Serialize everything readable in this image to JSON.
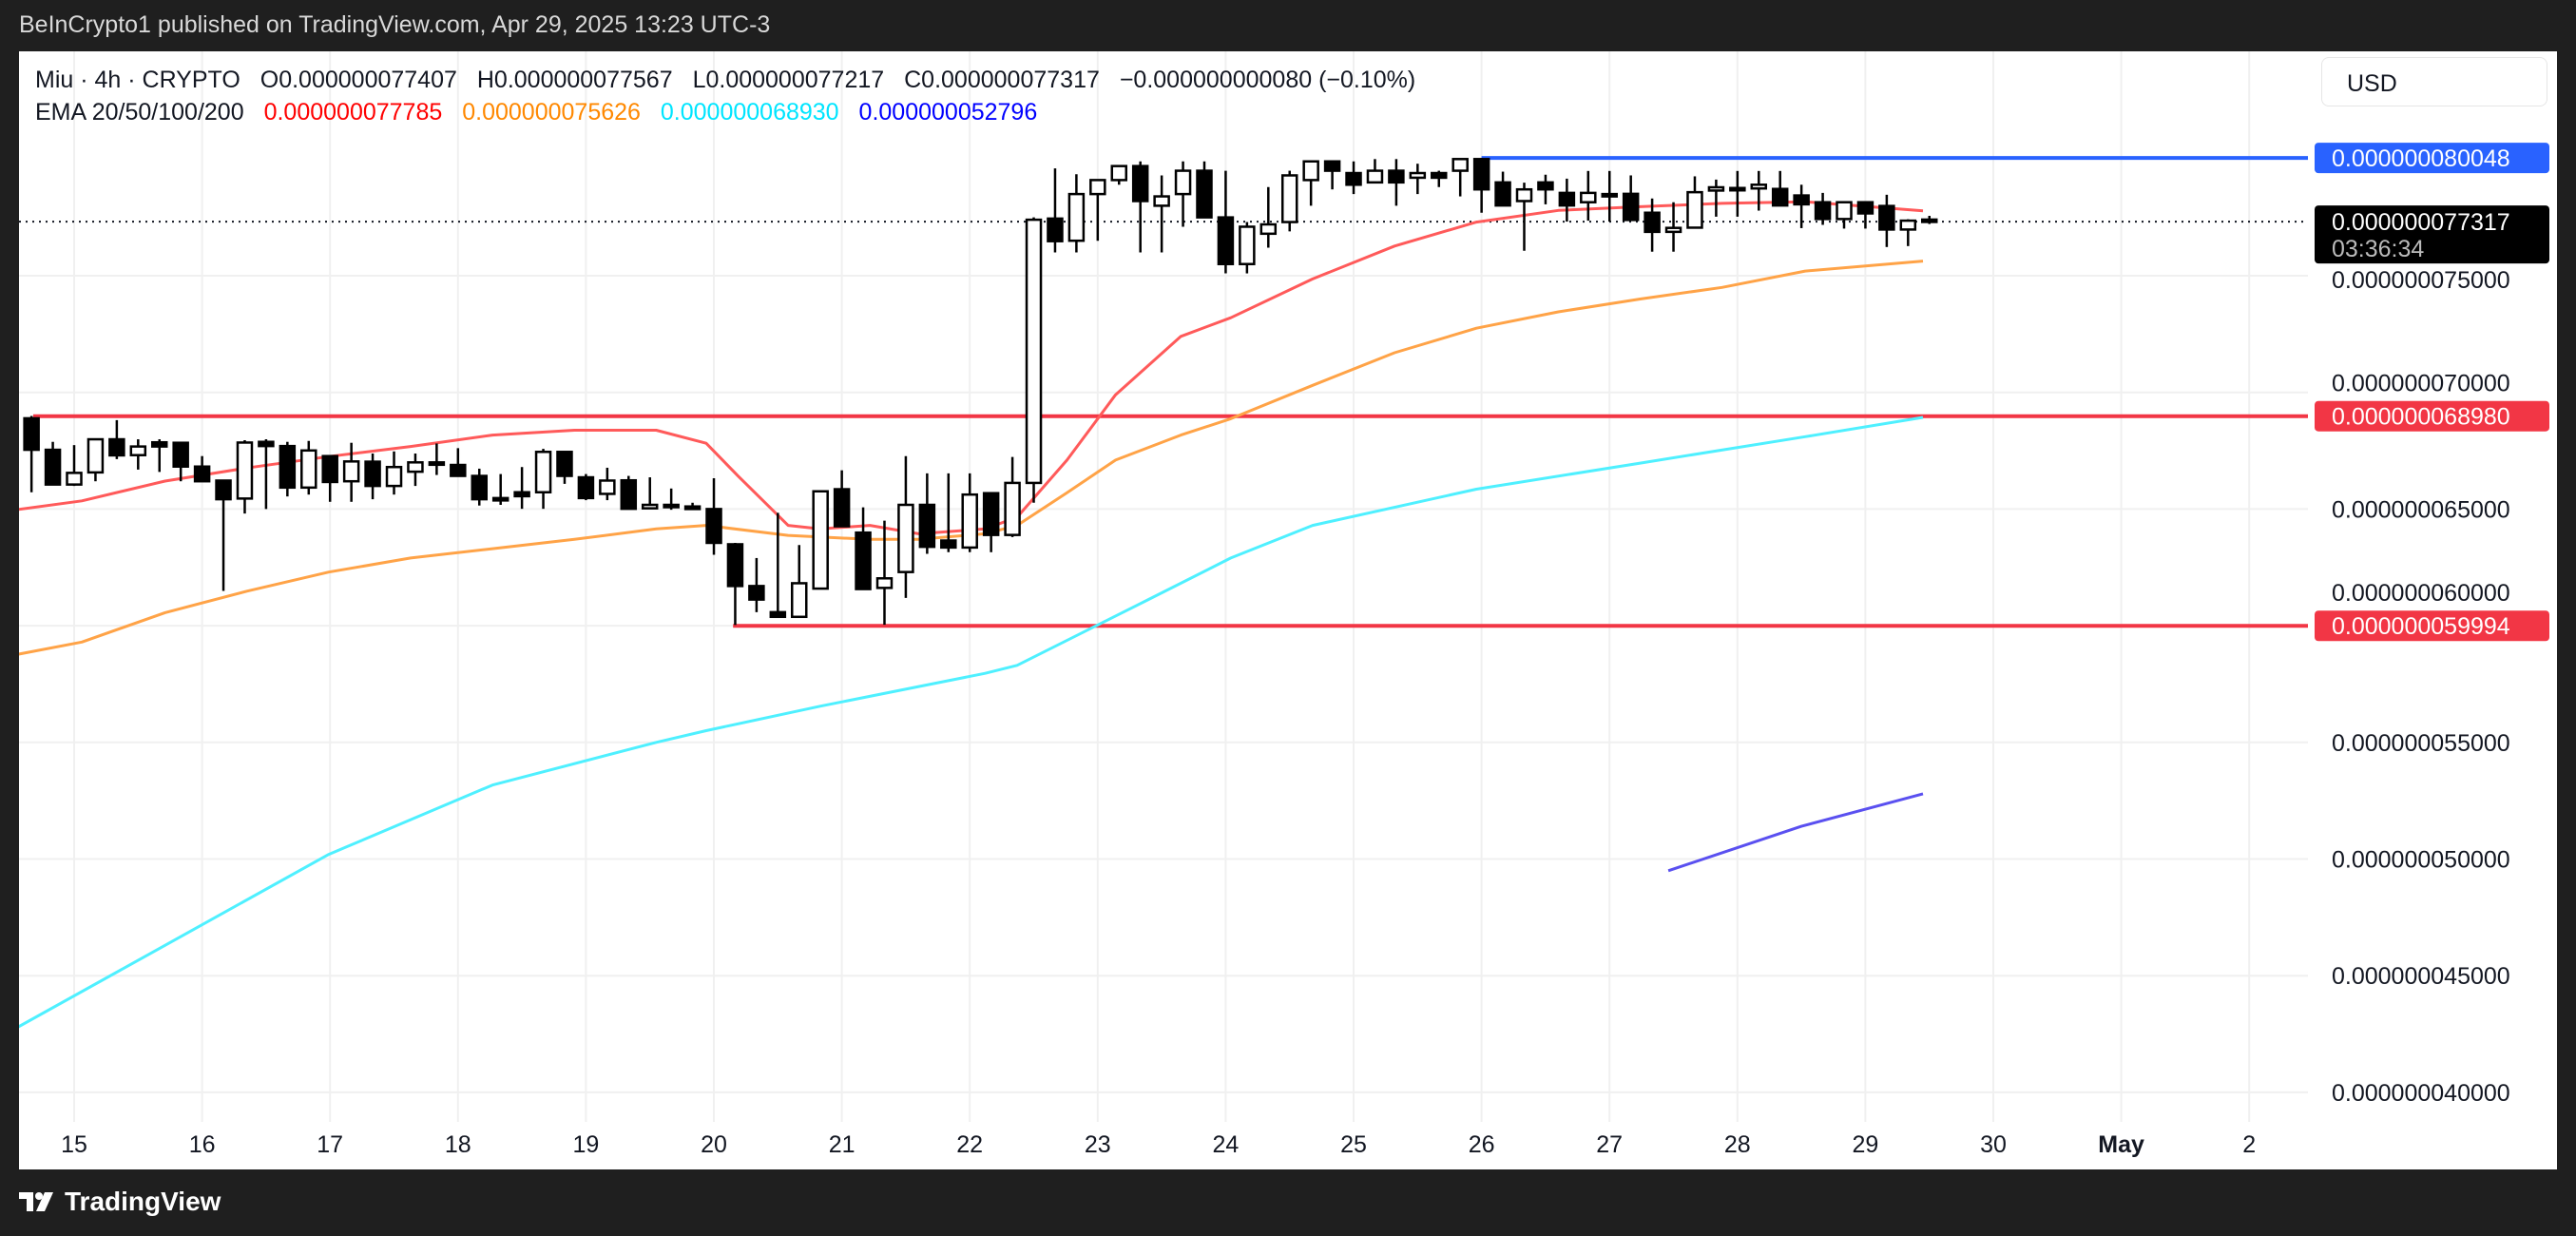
{
  "header": {
    "published": "BeInCrypto1 published on TradingView.com, Apr 29, 2025 13:23 UTC-3",
    "symbol": "Miu · 4h · CRYPTO",
    "open": "O0.000000077407",
    "high": "H0.000000077567",
    "low": "L0.000000077217",
    "close": "C0.000000077317",
    "change": "−0.000000000080 (−0.10%)",
    "ema_label": "EMA 20/50/100/200",
    "ema_values": [
      "0.000000077785",
      "0.000000075626",
      "0.000000068930",
      "0.000000052796"
    ],
    "ema_colors": [
      "#ff0000",
      "#ff8800",
      "#00e5ff",
      "#0000ff"
    ]
  },
  "currency_button": "USD",
  "footer": {
    "logo_text": "TradingView"
  },
  "chart_data": {
    "type": "candlestick",
    "title": "Miu · 4h · CRYPTO",
    "value_scale": 1e-09,
    "x_unit": "day of April 2025",
    "candle_interval_days": 0.16667,
    "first_candle_day": 14.6667,
    "ylim": [
      38.5,
      81.5
    ],
    "xlim": [
      14.45,
      33.0
    ],
    "grid": true,
    "y_ticks": [
      {
        "value": 75,
        "label": "0.000000075000"
      },
      {
        "value": 70,
        "label": "0.000000070000"
      },
      {
        "value": 65,
        "label": "0.000000065000"
      },
      {
        "value": 60,
        "label": "0.000000060000"
      },
      {
        "value": 55,
        "label": "0.000000055000"
      },
      {
        "value": 50,
        "label": "0.000000050000"
      },
      {
        "value": 45,
        "label": "0.000000045000"
      },
      {
        "value": 40,
        "label": "0.000000040000"
      }
    ],
    "x_ticks": [
      {
        "day": 15,
        "label": "15"
      },
      {
        "day": 16,
        "label": "16"
      },
      {
        "day": 17,
        "label": "17"
      },
      {
        "day": 18,
        "label": "18"
      },
      {
        "day": 19,
        "label": "19"
      },
      {
        "day": 20,
        "label": "20"
      },
      {
        "day": 21,
        "label": "21"
      },
      {
        "day": 22,
        "label": "22"
      },
      {
        "day": 23,
        "label": "23"
      },
      {
        "day": 24,
        "label": "24"
      },
      {
        "day": 25,
        "label": "25"
      },
      {
        "day": 26,
        "label": "26"
      },
      {
        "day": 27,
        "label": "27"
      },
      {
        "day": 28,
        "label": "28"
      },
      {
        "day": 29,
        "label": "29"
      },
      {
        "day": 30,
        "label": "30"
      },
      {
        "day": 31,
        "label": "May"
      },
      {
        "day": 32,
        "label": "2"
      }
    ],
    "candles_ohlc": [
      [
        68.89,
        68.99,
        65.72,
        67.54
      ],
      [
        67.54,
        67.88,
        66.05,
        66.05
      ],
      [
        66.05,
        67.74,
        65.99,
        66.55
      ],
      [
        66.57,
        67.99,
        66.19,
        67.99
      ],
      [
        67.99,
        68.81,
        67.14,
        67.3
      ],
      [
        67.31,
        67.99,
        66.69,
        67.68
      ],
      [
        67.86,
        67.99,
        66.59,
        67.68
      ],
      [
        67.84,
        67.84,
        66.19,
        66.82
      ],
      [
        66.82,
        67.27,
        66.19,
        66.19
      ],
      [
        66.22,
        66.22,
        61.49,
        65.42
      ],
      [
        65.45,
        67.95,
        64.81,
        67.85
      ],
      [
        67.88,
        67.99,
        65.0,
        67.7
      ],
      [
        67.7,
        67.88,
        65.54,
        65.92
      ],
      [
        65.92,
        67.92,
        65.62,
        67.51
      ],
      [
        67.27,
        67.27,
        65.31,
        66.16
      ],
      [
        66.19,
        67.84,
        65.31,
        67.04
      ],
      [
        67.03,
        67.38,
        65.42,
        65.99
      ],
      [
        65.99,
        67.47,
        65.62,
        66.8
      ],
      [
        66.6,
        67.38,
        65.99,
        67.0
      ],
      [
        67.0,
        67.81,
        66.46,
        67.0
      ],
      [
        66.89,
        67.61,
        66.42,
        66.42
      ],
      [
        66.42,
        66.73,
        65.15,
        65.42
      ],
      [
        65.47,
        66.5,
        65.18,
        65.47
      ],
      [
        65.72,
        66.8,
        65.01,
        65.55
      ],
      [
        65.72,
        67.58,
        65.01,
        67.45
      ],
      [
        67.45,
        67.45,
        66.08,
        66.42
      ],
      [
        66.36,
        66.5,
        65.38,
        65.47
      ],
      [
        65.65,
        66.77,
        65.38,
        66.22
      ],
      [
        66.23,
        66.42,
        65.01,
        65.01
      ],
      [
        65.03,
        66.36,
        65.01,
        65.18
      ],
      [
        65.18,
        65.88,
        64.97,
        65.18
      ],
      [
        65.11,
        65.27,
        65.0,
        65.0
      ],
      [
        65.0,
        66.32,
        63.04,
        63.55
      ],
      [
        63.49,
        63.55,
        60.03,
        61.7
      ],
      [
        61.7,
        62.9,
        60.58,
        61.12
      ],
      [
        60.58,
        64.84,
        60.38,
        60.38
      ],
      [
        60.38,
        63.46,
        60.38,
        61.82
      ],
      [
        61.59,
        65.78,
        61.59,
        65.76
      ],
      [
        65.85,
        66.66,
        64.26,
        64.26
      ],
      [
        63.99,
        65.07,
        61.53,
        61.57
      ],
      [
        61.62,
        64.5,
        60.04,
        62.03
      ],
      [
        62.3,
        67.27,
        61.19,
        65.18
      ],
      [
        65.18,
        66.53,
        63.08,
        63.38
      ],
      [
        63.65,
        66.53,
        63.15,
        63.35
      ],
      [
        63.35,
        66.53,
        63.15,
        65.62
      ],
      [
        65.68,
        65.68,
        63.15,
        63.89
      ],
      [
        63.89,
        67.23,
        63.8,
        66.12
      ],
      [
        66.12,
        77.5,
        65.27,
        77.4
      ],
      [
        77.45,
        79.6,
        76.0,
        76.48
      ],
      [
        76.5,
        79.35,
        76.0,
        78.5
      ],
      [
        78.5,
        79.1,
        76.5,
        79.1
      ],
      [
        79.1,
        79.7,
        78.9,
        79.7
      ],
      [
        79.7,
        79.9,
        76.0,
        78.2
      ],
      [
        78.0,
        79.3,
        76.0,
        78.4
      ],
      [
        78.5,
        79.9,
        77.1,
        79.5
      ],
      [
        79.5,
        79.9,
        77.5,
        77.5
      ],
      [
        77.5,
        79.5,
        75.1,
        75.5
      ],
      [
        75.5,
        77.3,
        75.1,
        77.1
      ],
      [
        76.8,
        78.8,
        76.2,
        77.2
      ],
      [
        77.3,
        79.5,
        76.9,
        79.3
      ],
      [
        79.1,
        79.9,
        78.0,
        79.9
      ],
      [
        79.9,
        79.9,
        78.7,
        79.5
      ],
      [
        79.4,
        79.9,
        78.5,
        78.9
      ],
      [
        79.0,
        80.0,
        79.0,
        79.5
      ],
      [
        79.5,
        80.0,
        78.0,
        79.0
      ],
      [
        79.2,
        79.8,
        78.5,
        79.4
      ],
      [
        79.4,
        79.5,
        78.8,
        79.2
      ],
      [
        79.5,
        80.0,
        78.4,
        80.0
      ],
      [
        80.0,
        80.05,
        77.7,
        78.7
      ],
      [
        79.0,
        79.46,
        78.0,
        78.01
      ],
      [
        78.2,
        78.99,
        76.07,
        78.7
      ],
      [
        79.0,
        79.33,
        78.06,
        78.7
      ],
      [
        78.55,
        79.16,
        77.32,
        78.01
      ],
      [
        78.15,
        79.49,
        77.36,
        78.55
      ],
      [
        78.5,
        79.49,
        77.32,
        78.5
      ],
      [
        78.51,
        79.3,
        77.39,
        77.39
      ],
      [
        77.7,
        78.31,
        76.03,
        76.88
      ],
      [
        76.88,
        78.15,
        76.03,
        77.05
      ],
      [
        77.06,
        79.26,
        77.06,
        78.58
      ],
      [
        78.65,
        79.12,
        77.53,
        78.79
      ],
      [
        78.76,
        79.49,
        77.53,
        78.76
      ],
      [
        78.74,
        79.49,
        77.79,
        78.9
      ],
      [
        78.72,
        79.49,
        78.01,
        78.01
      ],
      [
        78.44,
        78.9,
        77.04,
        78.06
      ],
      [
        78.15,
        78.55,
        77.18,
        77.43
      ],
      [
        77.43,
        78.15,
        77.02,
        78.15
      ],
      [
        78.15,
        78.15,
        77.02,
        77.67
      ],
      [
        77.99,
        78.47,
        76.23,
        76.98
      ],
      [
        76.98,
        77.42,
        76.27,
        77.36
      ],
      [
        77.407,
        77.567,
        77.217,
        77.317
      ]
    ],
    "series": [
      {
        "name": "EMA 20",
        "color": "#ff5a5a",
        "points": [
          [
            14.45,
            64.9
          ],
          [
            15.06,
            65.35
          ],
          [
            15.71,
            66.2
          ],
          [
            16.35,
            66.76
          ],
          [
            16.99,
            67.25
          ],
          [
            17.63,
            67.68
          ],
          [
            18.27,
            68.17
          ],
          [
            18.91,
            68.38
          ],
          [
            19.55,
            68.38
          ],
          [
            19.94,
            67.82
          ],
          [
            20.19,
            66.41
          ],
          [
            20.58,
            64.3
          ],
          [
            20.83,
            64.15
          ],
          [
            21.22,
            64.3
          ],
          [
            21.6,
            63.94
          ],
          [
            22.12,
            64.15
          ],
          [
            22.37,
            64.65
          ],
          [
            22.76,
            67.1
          ],
          [
            23.14,
            69.9
          ],
          [
            23.65,
            72.4
          ],
          [
            24.04,
            73.2
          ],
          [
            24.68,
            74.86
          ],
          [
            25.32,
            76.27
          ],
          [
            25.96,
            77.3
          ],
          [
            26.6,
            77.8
          ],
          [
            27.24,
            77.96
          ],
          [
            27.88,
            78.1
          ],
          [
            28.53,
            78.17
          ],
          [
            29.45,
            77.785
          ]
        ]
      },
      {
        "name": "EMA 50",
        "color": "#ffa347",
        "points": [
          [
            14.45,
            58.66
          ],
          [
            15.06,
            59.3
          ],
          [
            15.71,
            60.56
          ],
          [
            16.35,
            61.48
          ],
          [
            16.99,
            62.3
          ],
          [
            17.63,
            62.9
          ],
          [
            18.27,
            63.3
          ],
          [
            18.91,
            63.7
          ],
          [
            19.55,
            64.15
          ],
          [
            19.94,
            64.3
          ],
          [
            20.58,
            63.87
          ],
          [
            21.22,
            63.7
          ],
          [
            21.6,
            63.7
          ],
          [
            22.12,
            63.94
          ],
          [
            22.37,
            64.3
          ],
          [
            22.76,
            65.7
          ],
          [
            23.14,
            67.1
          ],
          [
            23.65,
            68.17
          ],
          [
            24.04,
            68.87
          ],
          [
            24.68,
            70.3
          ],
          [
            25.32,
            71.7
          ],
          [
            25.96,
            72.75
          ],
          [
            26.6,
            73.45
          ],
          [
            27.24,
            74.0
          ],
          [
            27.88,
            74.5
          ],
          [
            28.53,
            75.2
          ],
          [
            29.45,
            75.626
          ]
        ]
      },
      {
        "name": "EMA 100",
        "color": "#4ff0ff",
        "points": [
          [
            14.45,
            42.46
          ],
          [
            15.71,
            46.3
          ],
          [
            16.99,
            50.2
          ],
          [
            18.27,
            53.17
          ],
          [
            19.55,
            55.0
          ],
          [
            19.94,
            55.5
          ],
          [
            20.83,
            56.55
          ],
          [
            22.12,
            57.96
          ],
          [
            22.37,
            58.3
          ],
          [
            23.4,
            61.13
          ],
          [
            24.04,
            62.9
          ],
          [
            24.68,
            64.3
          ],
          [
            25.96,
            65.85
          ],
          [
            27.24,
            66.97
          ],
          [
            28.53,
            68.1
          ],
          [
            29.45,
            68.93
          ]
        ]
      },
      {
        "name": "EMA 200",
        "color": "#5a50f0",
        "points": [
          [
            27.46,
            49.5
          ],
          [
            28.5,
            51.4
          ],
          [
            29.45,
            52.796
          ]
        ]
      }
    ],
    "horizontal_levels": [
      {
        "value": 80.048,
        "from_day": 26.0,
        "color": "#2962ff",
        "label": "0.000000080048"
      },
      {
        "value": 68.98,
        "from_day": 14.68,
        "color": "#f23645",
        "label": "0.000000068980"
      },
      {
        "value": 59.994,
        "from_day": 20.15,
        "color": "#f23645",
        "label": "0.000000059994"
      }
    ],
    "last_price": {
      "value": 77.317,
      "label": "0.000000077317",
      "countdown": "03:36:34"
    }
  }
}
